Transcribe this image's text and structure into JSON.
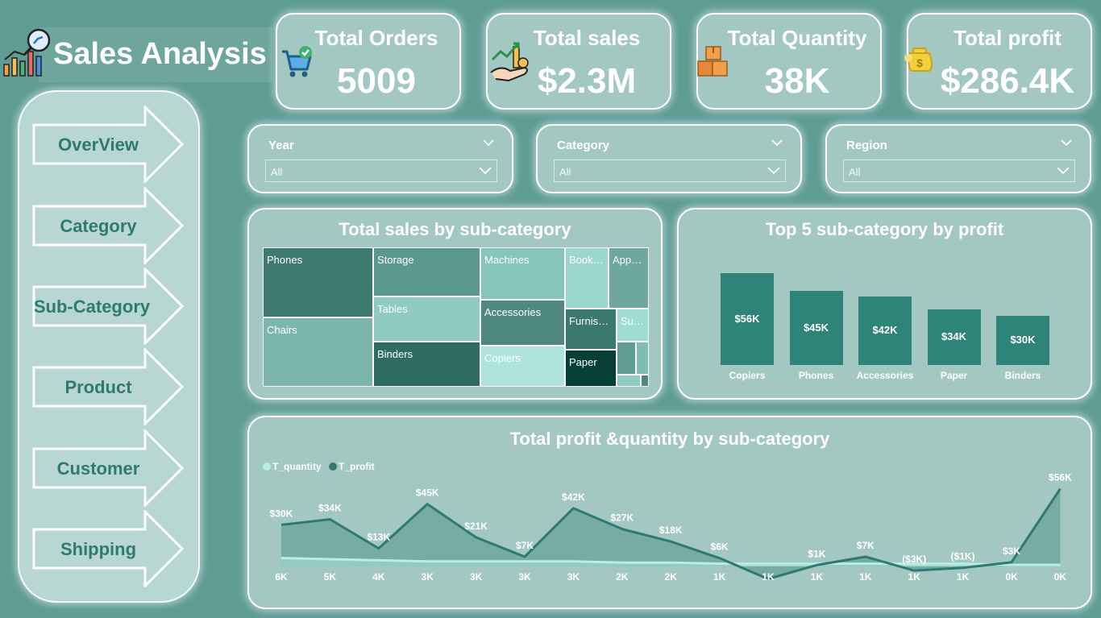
{
  "header": {
    "title": "Sales Analysis"
  },
  "icons": {
    "logo": "analytics-chart-icon",
    "orders": "shopping-cart-icon",
    "sales": "money-growth-icon",
    "quantity": "boxes-icon",
    "profit": "money-bag-icon"
  },
  "kpis": [
    {
      "label": "Total Orders",
      "value": "5009"
    },
    {
      "label": "Total sales",
      "value": "$2.3M"
    },
    {
      "label": "Total Quantity",
      "value": "38K"
    },
    {
      "label": "Total profit",
      "value": "$286.4K"
    }
  ],
  "nav": {
    "items": [
      {
        "label": "OverView"
      },
      {
        "label": "Category"
      },
      {
        "label": "Sub-Category"
      },
      {
        "label": "Product"
      },
      {
        "label": "Customer"
      },
      {
        "label": "Shipping"
      }
    ]
  },
  "filters": [
    {
      "label": "Year",
      "value": "All"
    },
    {
      "label": "Category",
      "value": "All"
    },
    {
      "label": "Region",
      "value": "All"
    }
  ],
  "colors": {
    "background": "#5e9c94",
    "card": "#a3c8c2",
    "accent": "#2e8479",
    "light": "#a8e3dc"
  },
  "treemap": {
    "title": "Total sales by sub-category",
    "cells": [
      "Phones",
      "Chairs",
      "Storage",
      "Tables",
      "Binders",
      "Machines",
      "Accessories",
      "Copiers",
      "Book…",
      "App…",
      "Furnis…",
      "Paper",
      "Su…"
    ]
  },
  "top5": {
    "title": "Top 5 sub-category by profit",
    "chart_data": {
      "type": "bar",
      "categories": [
        "Copiers",
        "Phones",
        "Accessories",
        "Paper",
        "Binders"
      ],
      "values": [
        56,
        45,
        42,
        34,
        30
      ],
      "labels": [
        "$56K",
        "$45K",
        "$42K",
        "$34K",
        "$30K"
      ],
      "unit": "K$"
    }
  },
  "combo": {
    "title": "Total profit &quantity by sub-category",
    "legend": {
      "quantity": "T_quantity",
      "profit": "T_profit"
    },
    "chart_data": {
      "type": "area",
      "series": [
        {
          "name": "T_profit",
          "values": [
            30,
            34,
            13,
            45,
            21,
            7,
            42,
            27,
            18,
            6,
            -9,
            1,
            7,
            -3,
            -1,
            3,
            56
          ],
          "labels": [
            "$30K",
            "$34K",
            "$13K",
            "$45K",
            "$21K",
            "$7K",
            "$42K",
            "$27K",
            "$18K",
            "$6K",
            "",
            "$1K",
            "$7K",
            "($3K)",
            "($1K)",
            "$3K",
            "$56K"
          ]
        },
        {
          "name": "T_quantity",
          "values": [
            6,
            5,
            4,
            3,
            3,
            3,
            3,
            2,
            2,
            1,
            1,
            1,
            1,
            1,
            1,
            0,
            0
          ],
          "labels": [
            "6K",
            "5K",
            "4K",
            "3K",
            "3K",
            "3K",
            "3K",
            "2K",
            "2K",
            "1K",
            "1K",
            "1K",
            "1K",
            "1K",
            "1K",
            "0K",
            "0K"
          ]
        }
      ]
    }
  }
}
